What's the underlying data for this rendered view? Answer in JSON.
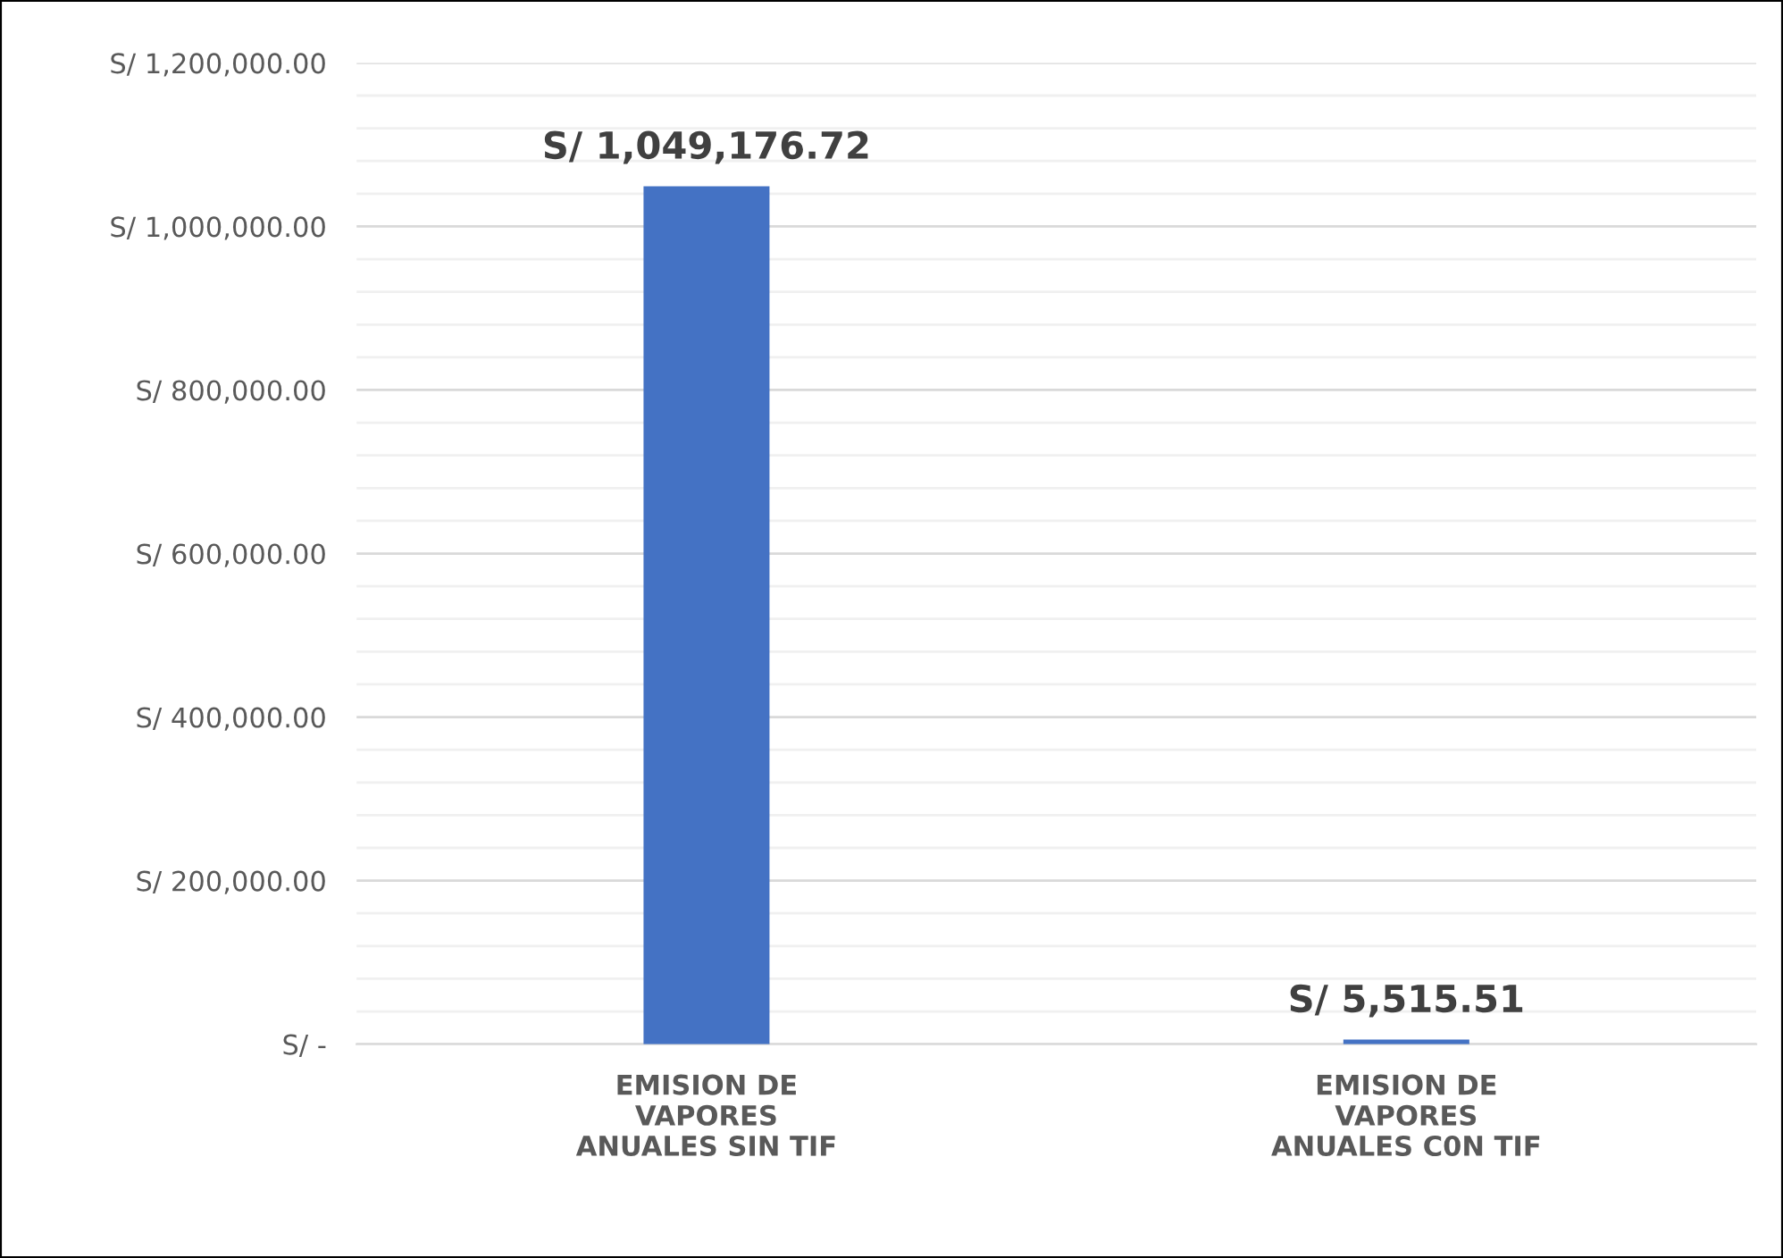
{
  "chart_data": {
    "type": "bar",
    "categories": [
      "EMISION DE\nVAPORES\nANUALES SIN TIF",
      "EMISION DE\nVAPORES\nANUALES C0N TIF"
    ],
    "values": [
      1049176.72,
      5515.51
    ],
    "value_labels": [
      "S/ 1,049,176.72",
      "S/ 5,515.51"
    ],
    "color": "#4472c4",
    "ylim": [
      0,
      1200000
    ],
    "yticks": [
      {
        "value": 0,
        "label": "S/ -"
      },
      {
        "value": 40000,
        "label": null
      },
      {
        "value": 80000,
        "label": null
      },
      {
        "value": 120000,
        "label": null
      },
      {
        "value": 160000,
        "label": null
      },
      {
        "value": 200000,
        "label": "S/ 200,000.00"
      },
      {
        "value": 240000,
        "label": null
      },
      {
        "value": 280000,
        "label": null
      },
      {
        "value": 320000,
        "label": null
      },
      {
        "value": 360000,
        "label": null
      },
      {
        "value": 400000,
        "label": "S/ 400,000.00"
      },
      {
        "value": 440000,
        "label": null
      },
      {
        "value": 480000,
        "label": null
      },
      {
        "value": 520000,
        "label": null
      },
      {
        "value": 560000,
        "label": null
      },
      {
        "value": 600000,
        "label": "S/ 600,000.00"
      },
      {
        "value": 640000,
        "label": null
      },
      {
        "value": 680000,
        "label": null
      },
      {
        "value": 720000,
        "label": null
      },
      {
        "value": 760000,
        "label": null
      },
      {
        "value": 800000,
        "label": "S/ 800,000.00"
      },
      {
        "value": 840000,
        "label": null
      },
      {
        "value": 880000,
        "label": null
      },
      {
        "value": 920000,
        "label": null
      },
      {
        "value": 960000,
        "label": null
      },
      {
        "value": 1000000,
        "label": "S/ 1,000,000.00"
      },
      {
        "value": 1040000,
        "label": null
      },
      {
        "value": 1080000,
        "label": null
      },
      {
        "value": 1120000,
        "label": null
      },
      {
        "value": 1160000,
        "label": null
      },
      {
        "value": 1200000,
        "label": "S/ 1,200,000.00"
      }
    ],
    "grid": "y"
  }
}
